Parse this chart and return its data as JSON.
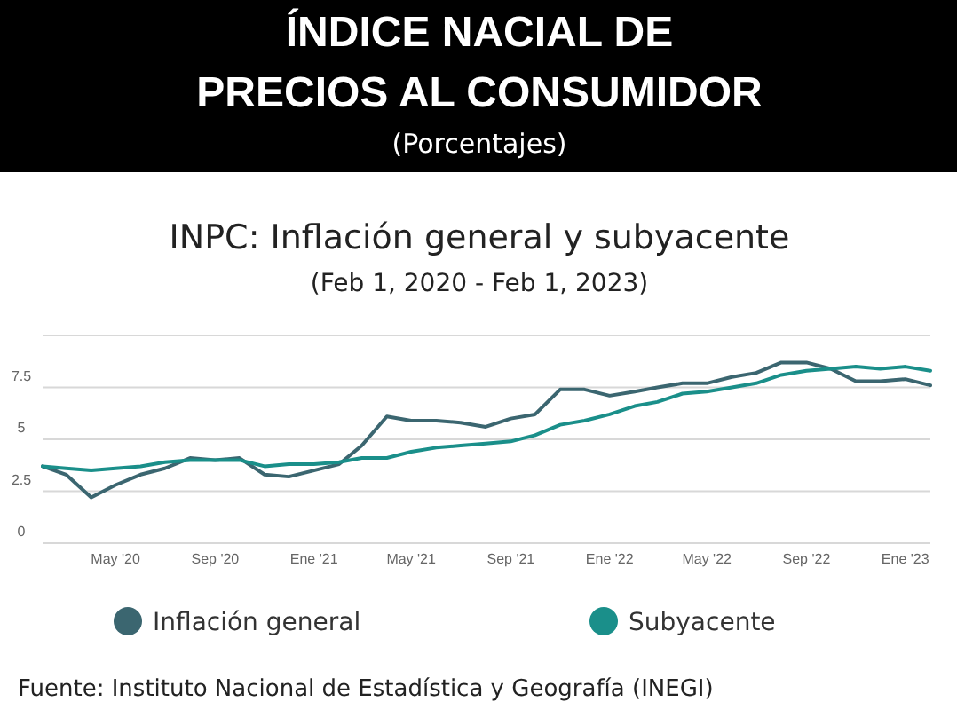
{
  "chart_data": {
    "type": "line",
    "title": "ÍNDICE NACIAL DE PRECIOS AL CONSUMIDOR",
    "subtitle": "(Porcentajes)",
    "annotations": [
      "INPC: Inflación general y subyacente",
      "(Feb 1, 2020 - Feb 1, 2023)",
      "Fuente: Instituto Nacional de Estadística y Geografía (INEGI)"
    ],
    "x": [
      "2020-02",
      "2020-03",
      "2020-04",
      "2020-05",
      "2020-06",
      "2020-07",
      "2020-08",
      "2020-09",
      "2020-10",
      "2020-11",
      "2020-12",
      "2021-01",
      "2021-02",
      "2021-03",
      "2021-04",
      "2021-05",
      "2021-06",
      "2021-07",
      "2021-08",
      "2021-09",
      "2021-10",
      "2021-11",
      "2021-12",
      "2022-01",
      "2022-02",
      "2022-03",
      "2022-04",
      "2022-05",
      "2022-06",
      "2022-07",
      "2022-08",
      "2022-09",
      "2022-10",
      "2022-11",
      "2022-12",
      "2023-01",
      "2023-02"
    ],
    "series": [
      {
        "name": "Inflación general",
        "color": "#3b6670",
        "values": [
          3.7,
          3.3,
          2.2,
          2.8,
          3.3,
          3.6,
          4.1,
          4.0,
          4.1,
          3.3,
          3.2,
          3.5,
          3.8,
          4.7,
          6.1,
          5.9,
          5.9,
          5.8,
          5.6,
          6.0,
          6.2,
          7.4,
          7.4,
          7.1,
          7.3,
          7.5,
          7.7,
          7.7,
          8.0,
          8.2,
          8.7,
          8.7,
          8.4,
          7.8,
          7.8,
          7.9,
          7.6
        ]
      },
      {
        "name": "Subyacente",
        "color": "#1a8f8a",
        "values": [
          3.7,
          3.6,
          3.5,
          3.6,
          3.7,
          3.9,
          4.0,
          4.0,
          4.0,
          3.7,
          3.8,
          3.8,
          3.9,
          4.1,
          4.1,
          4.4,
          4.6,
          4.7,
          4.8,
          4.9,
          5.2,
          5.7,
          5.9,
          6.2,
          6.6,
          6.8,
          7.2,
          7.3,
          7.5,
          7.7,
          8.1,
          8.3,
          8.4,
          8.5,
          8.4,
          8.5,
          8.3
        ]
      }
    ],
    "xlim": [
      "2020-02",
      "2023-02"
    ],
    "xticks": [
      {
        "value": "2020-05",
        "label": "May '20"
      },
      {
        "value": "2020-09",
        "label": "Sep '20"
      },
      {
        "value": "2021-01",
        "label": "Ene '21"
      },
      {
        "value": "2021-05",
        "label": "May '21"
      },
      {
        "value": "2021-09",
        "label": "Sep '21"
      },
      {
        "value": "2022-01",
        "label": "Ene '22"
      },
      {
        "value": "2022-05",
        "label": "May '22"
      },
      {
        "value": "2022-09",
        "label": "Sep '22"
      },
      {
        "value": "2023-01",
        "label": "Ene '23"
      }
    ],
    "ylim": [
      0,
      10
    ],
    "yticks": [
      0,
      2.5,
      5,
      7.5,
      {
        "value": 10,
        "label": null
      }
    ],
    "grid": "y",
    "legend": "bottom",
    "marker": "none",
    "line_style": "solid"
  }
}
